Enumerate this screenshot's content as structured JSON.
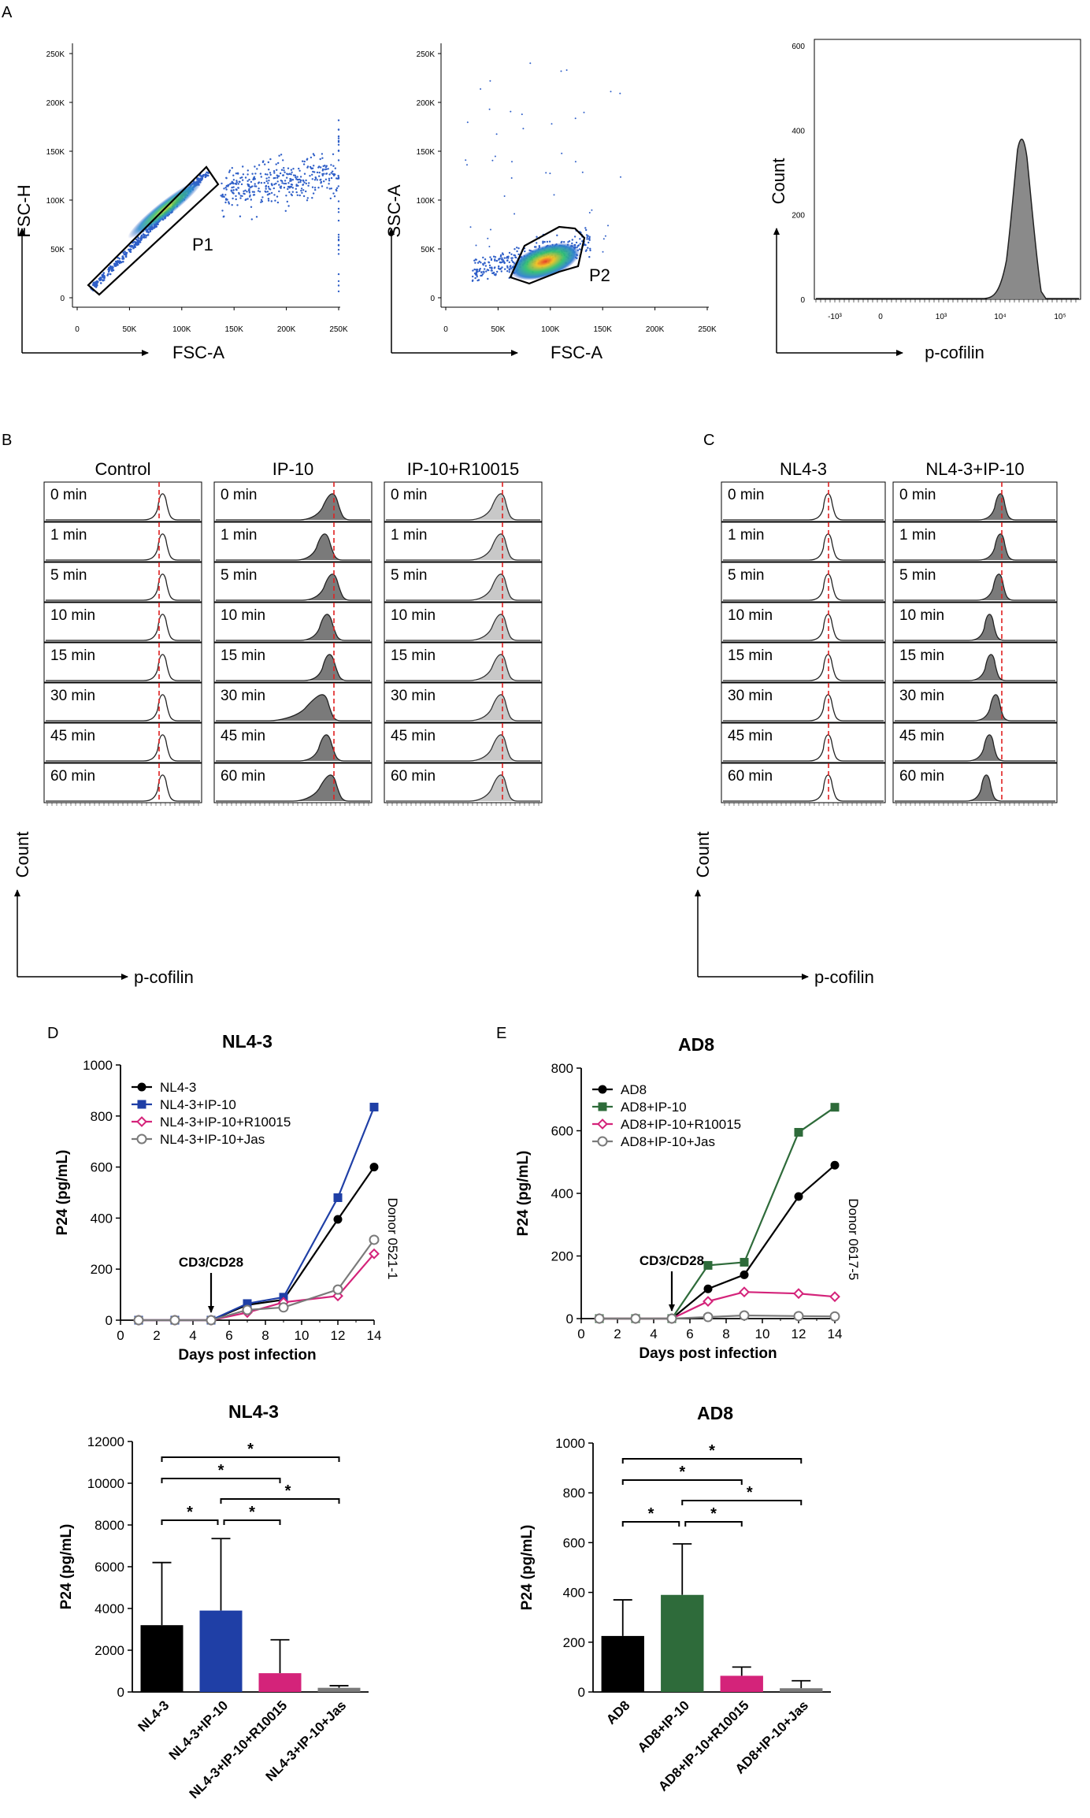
{
  "panels": {
    "A": {
      "letter": "A",
      "plot1": {
        "ylabel": "FSC-H",
        "xlabel": "FSC-A",
        "gate": "P1",
        "yticks": [
          "250K",
          "200K",
          "150K",
          "100K",
          "50K",
          "0"
        ],
        "xticks": [
          "0",
          "50K",
          "100K",
          "150K",
          "200K",
          "250K"
        ]
      },
      "plot2": {
        "ylabel": "SSC-A",
        "xlabel": "FSC-A",
        "gate": "P2",
        "yticks": [
          "250K",
          "200K",
          "150K",
          "100K",
          "50K",
          "0"
        ],
        "xticks": [
          "0",
          "50K",
          "100K",
          "150K",
          "200K",
          "250K"
        ]
      },
      "plot3": {
        "ylabel": "Count",
        "xlabel": "p-cofilin",
        "yticks": [
          "600",
          "400",
          "200",
          "0"
        ],
        "xticks": [
          "-10³",
          "0",
          "10³",
          "10⁴",
          "10⁵"
        ]
      }
    },
    "B": {
      "letter": "B",
      "columns": [
        "Control",
        "IP-10",
        "IP-10+R10015"
      ],
      "ylabel": "Count",
      "xlabel": "p-cofilin"
    },
    "C": {
      "letter": "C",
      "columns": [
        "NL4-3",
        "NL4-3+IP-10"
      ],
      "ylabel": "Count",
      "xlabel": "p-cofilin"
    },
    "D": {
      "letter": "D"
    },
    "E": {
      "letter": "E"
    }
  },
  "timepoints": [
    "0 min",
    "1 min",
    "5 min",
    "10 min",
    "15 min",
    "30 min",
    "45 min",
    "60 min"
  ],
  "chart_data": [
    {
      "type": "line",
      "panel": "D",
      "title": "NL4-3",
      "xlabel": "Days post infection",
      "ylabel": "P24 (pg/mL)",
      "xlim": [
        0,
        14
      ],
      "ylim": [
        0,
        1000
      ],
      "xticks": [
        "0",
        "2",
        "4",
        "6",
        "8",
        "10",
        "12",
        "14"
      ],
      "yticks": [
        "0",
        "200",
        "400",
        "600",
        "800",
        "1000"
      ],
      "x": [
        1,
        3,
        5,
        7,
        9,
        12,
        14
      ],
      "series": [
        {
          "name": "NL4-3",
          "color": "#000000",
          "marker": "circle",
          "values": [
            0,
            0,
            0,
            60,
            80,
            395,
            600
          ]
        },
        {
          "name": "NL4-3+IP-10",
          "color": "#1f3fa6",
          "marker": "square",
          "values": [
            0,
            0,
            0,
            65,
            90,
            480,
            835
          ]
        },
        {
          "name": "NL4-3+IP-10+R10015",
          "color": "#d4237a",
          "marker": "diamond",
          "values": [
            0,
            0,
            0,
            30,
            70,
            95,
            260
          ]
        },
        {
          "name": "NL4-3+IP-10+Jas",
          "color": "#7a7a7a",
          "marker": "open-circle",
          "values": [
            0,
            0,
            0,
            40,
            50,
            120,
            315
          ]
        }
      ],
      "annotations": {
        "arrow": "CD3/CD28",
        "donor": "Donor 0521-1"
      }
    },
    {
      "type": "line",
      "panel": "E",
      "title": "AD8",
      "xlabel": "Days post infection",
      "ylabel": "P24 (pg/mL)",
      "xlim": [
        0,
        14
      ],
      "ylim": [
        0,
        800
      ],
      "xticks": [
        "0",
        "2",
        "4",
        "6",
        "8",
        "10",
        "12",
        "14"
      ],
      "yticks": [
        "0",
        "200",
        "400",
        "600",
        "800"
      ],
      "x": [
        1,
        3,
        5,
        7,
        9,
        12,
        14
      ],
      "series": [
        {
          "name": "AD8",
          "color": "#000000",
          "marker": "circle",
          "values": [
            0,
            0,
            0,
            95,
            140,
            390,
            490
          ]
        },
        {
          "name": "AD8+IP-10",
          "color": "#2e6b3a",
          "marker": "square",
          "values": [
            0,
            0,
            0,
            170,
            180,
            595,
            675
          ]
        },
        {
          "name": "AD8+IP-10+R10015",
          "color": "#d4237a",
          "marker": "diamond",
          "values": [
            0,
            0,
            0,
            55,
            85,
            80,
            70
          ]
        },
        {
          "name": "AD8+IP-10+Jas",
          "color": "#7a7a7a",
          "marker": "open-circle",
          "values": [
            0,
            0,
            0,
            5,
            10,
            8,
            7
          ]
        }
      ],
      "annotations": {
        "arrow": "CD3/CD28",
        "donor": "Donor 0617-5"
      }
    },
    {
      "type": "bar",
      "panel": "D-bottom",
      "title": "NL4-3",
      "ylabel": "P24 (pg/mL)",
      "ylim": [
        0,
        12000
      ],
      "yticks": [
        "0",
        "2000",
        "4000",
        "6000",
        "8000",
        "10000",
        "12000"
      ],
      "categories": [
        "NL4-3",
        "NL4-3+IP-10",
        "NL4-3+IP-10+R10015",
        "NL4-3+IP-10+Jas"
      ],
      "values": [
        3200,
        3900,
        900,
        200
      ],
      "errors": [
        3000,
        3450,
        1600,
        100
      ],
      "colors": [
        "#000000",
        "#1f3fa6",
        "#d4237a",
        "#7a7a7a"
      ],
      "significance": [
        {
          "from": 0,
          "to": 1,
          "label": "*"
        },
        {
          "from": 0,
          "to": 2,
          "label": "*"
        },
        {
          "from": 0,
          "to": 3,
          "label": "*"
        },
        {
          "from": 1,
          "to": 2,
          "label": "*"
        },
        {
          "from": 1,
          "to": 3,
          "label": "*"
        }
      ]
    },
    {
      "type": "bar",
      "panel": "E-bottom",
      "title": "AD8",
      "ylabel": "P24 (pg/mL)",
      "ylim": [
        0,
        1000
      ],
      "yticks": [
        "0",
        "200",
        "400",
        "600",
        "800",
        "1000"
      ],
      "categories": [
        "AD8",
        "AD8+IP-10",
        "AD8+IP-10+R10015",
        "AD8+IP-10+Jas"
      ],
      "values": [
        225,
        390,
        65,
        15
      ],
      "errors": [
        145,
        205,
        35,
        30
      ],
      "colors": [
        "#000000",
        "#2e6b3a",
        "#d4237a",
        "#7a7a7a"
      ],
      "significance": [
        {
          "from": 0,
          "to": 1,
          "label": "*"
        },
        {
          "from": 0,
          "to": 2,
          "label": "*"
        },
        {
          "from": 0,
          "to": 3,
          "label": "*"
        },
        {
          "from": 1,
          "to": 2,
          "label": "*"
        },
        {
          "from": 1,
          "to": 3,
          "label": "*"
        }
      ]
    }
  ]
}
